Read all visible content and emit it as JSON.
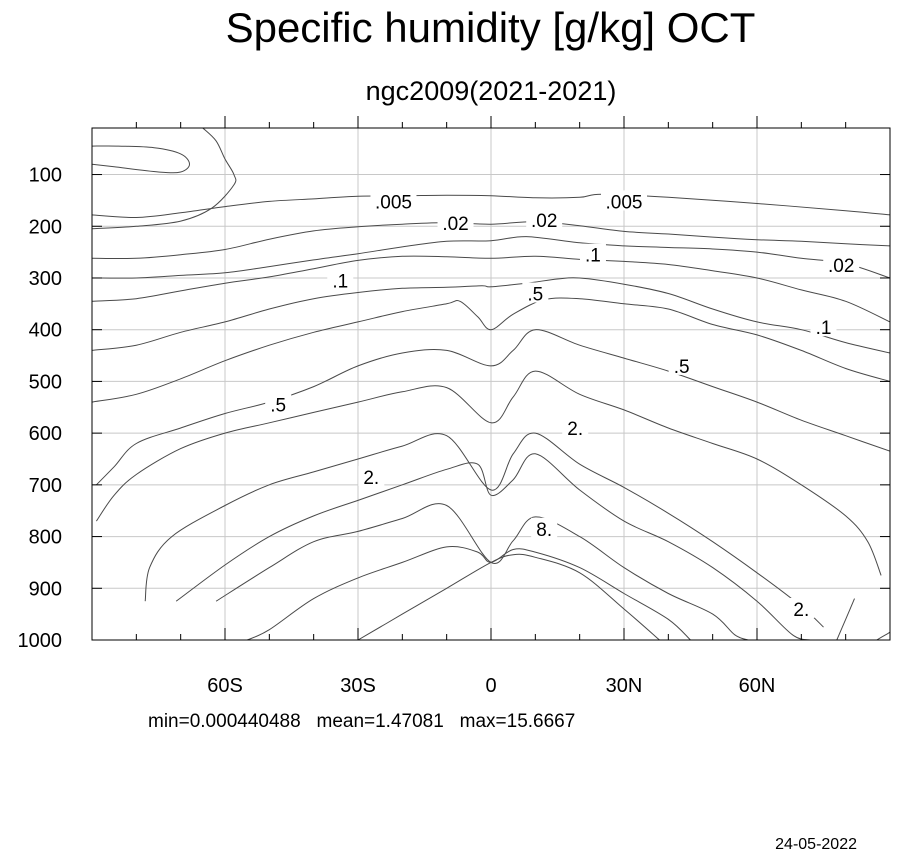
{
  "chart_data": {
    "type": "contour",
    "title": "Specific humidity [g/kg] OCT",
    "subtitle": "ngc2009(2021-2021)",
    "colors": {
      "contour": "#4a4a4a",
      "grid": "#c8c8c8",
      "axis": "#000000"
    },
    "x_axis": {
      "range": [
        -90,
        90
      ],
      "ticks": [
        -60,
        -30,
        0,
        30,
        60
      ],
      "tick_labels": [
        "60S",
        "30S",
        "0",
        "30N",
        "60N"
      ],
      "minor_ticks": [
        -80,
        -70,
        -50,
        -40,
        -20,
        -10,
        10,
        20,
        40,
        50,
        70,
        80
      ]
    },
    "y_axis": {
      "range": [
        10,
        1000
      ],
      "inverted": true,
      "ticks": [
        100,
        200,
        300,
        400,
        500,
        600,
        700,
        800,
        900,
        1000
      ],
      "tick_labels": [
        "100",
        "200",
        "300",
        "400",
        "500",
        "600",
        "700",
        "800",
        "900",
        "1000"
      ]
    },
    "grid": true,
    "contour_levels": [
      {
        "label": ".005",
        "points": [
          [
            -90,
            178
          ],
          [
            -80,
            183
          ],
          [
            -70,
            174
          ],
          [
            -60,
            162
          ],
          [
            -50,
            152
          ],
          [
            -40,
            147
          ],
          [
            -30,
            142
          ],
          [
            -20,
            141
          ],
          [
            -10,
            140
          ],
          [
            0,
            141
          ],
          [
            10,
            145
          ],
          [
            20,
            144
          ],
          [
            25,
            138
          ],
          [
            40,
            144
          ],
          [
            60,
            156
          ],
          [
            80,
            170
          ],
          [
            90,
            178
          ]
        ]
      },
      {
        "label": ".02",
        "points": [
          [
            -90,
            262
          ],
          [
            -80,
            262
          ],
          [
            -70,
            255
          ],
          [
            -60,
            245
          ],
          [
            -50,
            225
          ],
          [
            -40,
            209
          ],
          [
            -30,
            201
          ],
          [
            -20,
            196
          ],
          [
            -10,
            193
          ],
          [
            0,
            196
          ],
          [
            10,
            191
          ],
          [
            20,
            199
          ],
          [
            30,
            210
          ],
          [
            40,
            215
          ],
          [
            50,
            221
          ],
          [
            60,
            226
          ],
          [
            70,
            229
          ],
          [
            80,
            234
          ],
          [
            90,
            238
          ]
        ]
      },
      {
        "label": ".1",
        "points": [
          [
            -90,
            300
          ],
          [
            -80,
            300
          ],
          [
            -70,
            295
          ],
          [
            -60,
            290
          ],
          [
            -50,
            278
          ],
          [
            -40,
            265
          ],
          [
            -30,
            253
          ],
          [
            -20,
            240
          ],
          [
            -10,
            229
          ],
          [
            0,
            228
          ],
          [
            8,
            220
          ],
          [
            20,
            232
          ],
          [
            30,
            238
          ],
          [
            40,
            241
          ],
          [
            50,
            244
          ],
          [
            60,
            250
          ],
          [
            70,
            262
          ],
          [
            80,
            272
          ],
          [
            90,
            300
          ]
        ]
      },
      {
        "label": ".1",
        "points": [
          [
            -90,
            345
          ],
          [
            -80,
            340
          ],
          [
            -70,
            325
          ],
          [
            -60,
            310
          ],
          [
            -50,
            298
          ],
          [
            -40,
            282
          ],
          [
            -30,
            266
          ],
          [
            -20,
            258
          ],
          [
            -10,
            259
          ],
          [
            0,
            262
          ],
          [
            10,
            258
          ],
          [
            20,
            264
          ],
          [
            30,
            268
          ],
          [
            40,
            274
          ],
          [
            50,
            286
          ],
          [
            60,
            300
          ],
          [
            70,
            323
          ],
          [
            80,
            345
          ],
          [
            90,
            385
          ]
        ]
      },
      {
        "label": ".5",
        "points": [
          [
            -90,
            440
          ],
          [
            -80,
            430
          ],
          [
            -70,
            405
          ],
          [
            -60,
            385
          ],
          [
            -50,
            360
          ],
          [
            -40,
            340
          ],
          [
            -30,
            328
          ],
          [
            -20,
            320
          ],
          [
            -10,
            318
          ],
          [
            -2,
            315
          ],
          [
            0,
            317
          ],
          [
            8,
            310
          ],
          [
            15,
            302
          ],
          [
            20,
            300
          ],
          [
            30,
            312
          ],
          [
            40,
            330
          ],
          [
            50,
            360
          ],
          [
            60,
            385
          ],
          [
            70,
            400
          ],
          [
            80,
            425
          ],
          [
            90,
            445
          ]
        ]
      },
      {
        "label": ".5",
        "points": [
          [
            -90,
            540
          ],
          [
            -80,
            525
          ],
          [
            -70,
            495
          ],
          [
            -60,
            460
          ],
          [
            -50,
            430
          ],
          [
            -40,
            405
          ],
          [
            -30,
            385
          ],
          [
            -20,
            365
          ],
          [
            -10,
            350
          ],
          [
            -7,
            345
          ],
          [
            -3,
            375
          ],
          [
            0,
            400
          ],
          [
            5,
            370
          ],
          [
            12,
            342
          ],
          [
            20,
            340
          ],
          [
            30,
            350
          ],
          [
            40,
            360
          ],
          [
            50,
            390
          ],
          [
            60,
            410
          ],
          [
            70,
            440
          ],
          [
            80,
            475
          ],
          [
            90,
            500
          ]
        ]
      },
      {
        "label": "2.",
        "points": [
          [
            -89,
            700
          ],
          [
            -85,
            665
          ],
          [
            -80,
            620
          ],
          [
            -70,
            590
          ],
          [
            -60,
            562
          ],
          [
            -50,
            540
          ],
          [
            -40,
            510
          ],
          [
            -30,
            470
          ],
          [
            -20,
            445
          ],
          [
            -10,
            440
          ],
          [
            0,
            470
          ],
          [
            5,
            440
          ],
          [
            10,
            400
          ],
          [
            20,
            430
          ],
          [
            30,
            455
          ],
          [
            40,
            480
          ],
          [
            50,
            510
          ],
          [
            60,
            540
          ],
          [
            70,
            575
          ],
          [
            80,
            605
          ],
          [
            90,
            635
          ]
        ]
      },
      {
        "label": "2.",
        "points": [
          [
            -89,
            770
          ],
          [
            -85,
            720
          ],
          [
            -80,
            680
          ],
          [
            -70,
            630
          ],
          [
            -60,
            600
          ],
          [
            -50,
            580
          ],
          [
            -40,
            560
          ],
          [
            -30,
            540
          ],
          [
            -20,
            520
          ],
          [
            -10,
            512
          ],
          [
            0,
            580
          ],
          [
            5,
            530
          ],
          [
            10,
            480
          ],
          [
            20,
            525
          ],
          [
            30,
            555
          ],
          [
            40,
            590
          ],
          [
            50,
            620
          ],
          [
            60,
            650
          ],
          [
            70,
            700
          ],
          [
            80,
            760
          ],
          [
            85,
            810
          ],
          [
            88,
            875
          ]
        ]
      },
      {
        "label": "2.",
        "points": [
          [
            -78,
            925
          ],
          [
            -77,
            860
          ],
          [
            -72,
            800
          ],
          [
            -60,
            740
          ],
          [
            -50,
            700
          ],
          [
            -40,
            675
          ],
          [
            -30,
            650
          ],
          [
            -20,
            625
          ],
          [
            -10,
            605
          ],
          [
            0,
            710
          ],
          [
            5,
            640
          ],
          [
            10,
            600
          ],
          [
            20,
            660
          ],
          [
            30,
            705
          ],
          [
            40,
            755
          ],
          [
            50,
            810
          ],
          [
            60,
            870
          ],
          [
            70,
            935
          ],
          [
            75,
            975
          ]
        ]
      },
      {
        "label": "8.",
        "points": [
          [
            -71,
            925
          ],
          [
            -60,
            855
          ],
          [
            -50,
            800
          ],
          [
            -40,
            760
          ],
          [
            -30,
            730
          ],
          [
            -20,
            700
          ],
          [
            -10,
            670
          ],
          [
            -3,
            660
          ],
          [
            0,
            720
          ],
          [
            5,
            690
          ],
          [
            10,
            640
          ],
          [
            20,
            710
          ],
          [
            30,
            770
          ],
          [
            40,
            810
          ],
          [
            50,
            860
          ],
          [
            60,
            925
          ],
          [
            68,
            990
          ],
          [
            72,
            1000
          ]
        ]
      },
      {
        "label": "8.",
        "points": [
          [
            -62,
            925
          ],
          [
            -50,
            860
          ],
          [
            -40,
            810
          ],
          [
            -30,
            790
          ],
          [
            -20,
            765
          ],
          [
            -10,
            740
          ],
          [
            0,
            850
          ],
          [
            5,
            808
          ],
          [
            10,
            762
          ],
          [
            20,
            800
          ],
          [
            30,
            860
          ],
          [
            40,
            910
          ],
          [
            50,
            950
          ],
          [
            55,
            990
          ],
          [
            58,
            1000
          ]
        ]
      },
      {
        "label": "",
        "points": [
          [
            -55,
            1000
          ],
          [
            -50,
            980
          ],
          [
            -40,
            920
          ],
          [
            -30,
            880
          ],
          [
            -20,
            850
          ],
          [
            -10,
            820
          ],
          [
            -3,
            830
          ],
          [
            0,
            850
          ],
          [
            5,
            825
          ],
          [
            10,
            830
          ],
          [
            20,
            860
          ],
          [
            30,
            910
          ],
          [
            40,
            960
          ],
          [
            45,
            1000
          ]
        ]
      },
      {
        "label": "",
        "points": [
          [
            -30,
            1000
          ],
          [
            -20,
            950
          ],
          [
            -10,
            900
          ],
          [
            0,
            850
          ],
          [
            5,
            835
          ],
          [
            10,
            840
          ],
          [
            20,
            870
          ],
          [
            30,
            940
          ],
          [
            38,
            1000
          ]
        ]
      },
      {
        "label": "",
        "points": [
          [
            -90,
            80
          ],
          [
            -85,
            85
          ],
          [
            -75,
            95
          ],
          [
            -70,
            95
          ],
          [
            -68,
            80
          ],
          [
            -70,
            60
          ],
          [
            -76,
            48
          ],
          [
            -84,
            45
          ],
          [
            -90,
            45
          ]
        ]
      },
      {
        "label": "",
        "points": [
          [
            -90,
            205
          ],
          [
            -80,
            200
          ],
          [
            -70,
            190
          ],
          [
            -63,
            165
          ],
          [
            -58,
            120
          ],
          [
            -58,
            100
          ],
          [
            -60,
            70
          ],
          [
            -62,
            35
          ],
          [
            -65,
            10
          ]
        ]
      },
      {
        "label": "",
        "points": [
          [
            78,
            1000
          ],
          [
            80,
            960
          ],
          [
            82,
            920
          ]
        ]
      },
      {
        "label": "",
        "points": [
          [
            87,
            1000
          ],
          [
            89,
            990
          ],
          [
            90,
            985
          ]
        ]
      }
    ],
    "contour_labels": [
      {
        "text": ".005",
        "x": -22,
        "y": 152
      },
      {
        "text": ".02",
        "x": -8,
        "y": 194
      },
      {
        "text": ".02",
        "x": 12,
        "y": 188
      },
      {
        "text": ".005",
        "x": 30,
        "y": 152
      },
      {
        "text": ".1",
        "x": 23,
        "y": 255
      },
      {
        "text": ".02",
        "x": 79,
        "y": 275
      },
      {
        "text": ".1",
        "x": -34,
        "y": 305
      },
      {
        "text": ".5",
        "x": 10,
        "y": 330
      },
      {
        "text": ".1",
        "x": 75,
        "y": 395
      },
      {
        "text": ".5",
        "x": 43,
        "y": 470
      },
      {
        "text": ".5",
        "x": -48,
        "y": 545
      },
      {
        "text": "2.",
        "x": 19,
        "y": 590
      },
      {
        "text": "2.",
        "x": -27,
        "y": 685
      },
      {
        "text": "8.",
        "x": 12,
        "y": 785
      },
      {
        "text": "2.",
        "x": 70,
        "y": 940
      }
    ]
  },
  "footer": {
    "stats": "min=0.000440488   mean=1.47081   max=15.6667",
    "date": "24-05-2022"
  }
}
